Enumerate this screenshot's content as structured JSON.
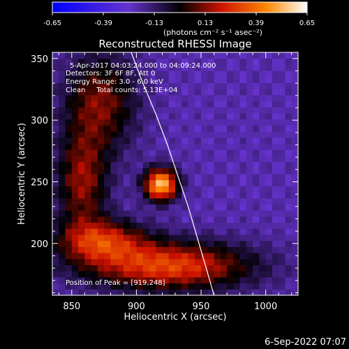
{
  "chart_data": {
    "type": "heatmap",
    "title": "Reconstructed RHESSI Image",
    "xlabel": "Heliocentric X (arcsec)",
    "ylabel": "Heliocentric Y (arcsec)",
    "xlim": [
      835,
      1025
    ],
    "ylim": [
      158,
      355
    ],
    "x_ticks": [
      "850",
      "900",
      "950",
      "1000"
    ],
    "x_tick_values": [
      850,
      900,
      950,
      1000
    ],
    "y_ticks": [
      "200",
      "250",
      "300",
      "350"
    ],
    "y_tick_values": [
      200,
      250,
      300,
      350
    ],
    "colorbar": {
      "ticks": [
        "-0.65",
        "-0.39",
        "-0.13",
        "0.13",
        "0.39",
        "0.65"
      ],
      "values": [
        -0.65,
        -0.39,
        -0.13,
        0.13,
        0.39,
        0.65
      ],
      "range": [
        -0.65,
        0.65
      ],
      "unit_label": "(photons cm⁻² s⁻¹ asec⁻²)"
    },
    "info_lines": [
      "5-Apr-2017 04:03:24.000 to 04:09:24.000",
      "Detectors: 3F 6F 8F, Att 0",
      "Energy Range: 3.0 - 6.0 keV",
      "Clean     Total counts: 5.13E+04"
    ],
    "peak_label": "Position of Peak = [919,248]",
    "peak_position": [
      919,
      248
    ],
    "limb_points": [
      [
        896,
        355
      ],
      [
        905,
        330
      ],
      [
        915,
        305
      ],
      [
        924,
        280
      ],
      [
        932,
        255
      ],
      [
        940,
        230
      ],
      [
        947,
        205
      ],
      [
        954,
        180
      ],
      [
        960,
        158
      ]
    ],
    "sources": [
      {
        "x": 919,
        "y": 248,
        "sx": 9,
        "sy": 9,
        "amp": 0.75
      },
      {
        "x": 925,
        "y": 182,
        "sx": 45,
        "sy": 14,
        "amp": 0.52
      },
      {
        "x": 873,
        "y": 203,
        "sx": 24,
        "sy": 12,
        "amp": 0.42
      },
      {
        "x": 858,
        "y": 250,
        "sx": 14,
        "sy": 28,
        "amp": 0.36
      },
      {
        "x": 872,
        "y": 315,
        "sx": 20,
        "sy": 28,
        "amp": 0.34
      }
    ],
    "background": -0.22,
    "colors": [
      "#0000ff",
      "#6633cc",
      "#000000",
      "#cc1100",
      "#ff8800",
      "#ffffff"
    ]
  },
  "timestamp": "6-Sep-2022 07:07"
}
